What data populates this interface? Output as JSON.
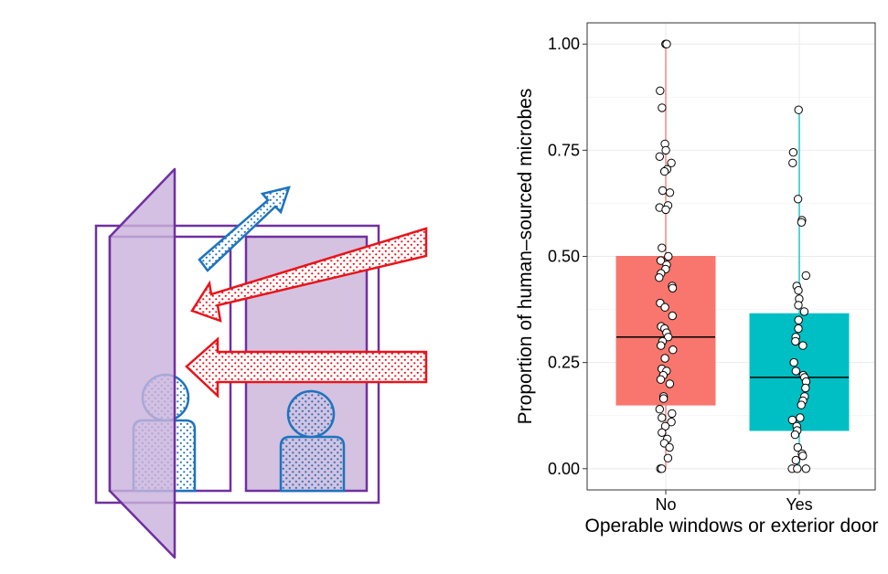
{
  "colors": {
    "no_group": "#F8766D",
    "yes_group": "#00BFC4",
    "frame_purple": "#7030A0",
    "fill_purple": "#D4C2E0",
    "arrow_red": "#E8141B",
    "arrow_blue": "#1E73BE",
    "grid": "#EBEBEB"
  },
  "illustration": {
    "icons": [
      "open-window-icon",
      "outdoor-air-arrow-icon",
      "exhaust-air-arrow-icon",
      "occupant-icon"
    ]
  },
  "chart_data": {
    "type": "boxplot",
    "xlabel": "Operable windows or exterior door",
    "ylabel": "Proportion of human–sourced microbes",
    "categories": [
      "No",
      "Yes"
    ],
    "ylim": [
      -0.05,
      1.05
    ],
    "yticks": [
      0.0,
      0.25,
      0.5,
      0.75,
      1.0
    ],
    "ytick_labels": [
      "0.00",
      "0.25",
      "0.50",
      "0.75",
      "1.00"
    ],
    "grid": true,
    "boxes": [
      {
        "category": "No",
        "min": 0.0,
        "q1": 0.15,
        "median": 0.31,
        "q3": 0.5,
        "max": 1.0
      },
      {
        "category": "Yes",
        "min": 0.0,
        "q1": 0.09,
        "median": 0.215,
        "q3": 0.365,
        "max": 0.845
      }
    ],
    "points": {
      "No": [
        1.0,
        1.0,
        0.89,
        0.85,
        0.765,
        0.75,
        0.735,
        0.72,
        0.705,
        0.7,
        0.655,
        0.65,
        0.62,
        0.615,
        0.61,
        0.52,
        0.5,
        0.49,
        0.48,
        0.47,
        0.46,
        0.45,
        0.43,
        0.425,
        0.39,
        0.38,
        0.36,
        0.335,
        0.33,
        0.32,
        0.31,
        0.3,
        0.29,
        0.28,
        0.26,
        0.235,
        0.23,
        0.22,
        0.21,
        0.2,
        0.17,
        0.165,
        0.14,
        0.13,
        0.12,
        0.11,
        0.1,
        0.085,
        0.07,
        0.06,
        0.05,
        0.025,
        0.0,
        0.0
      ],
      "Yes": [
        0.845,
        0.745,
        0.72,
        0.635,
        0.585,
        0.58,
        0.455,
        0.43,
        0.42,
        0.4,
        0.385,
        0.37,
        0.35,
        0.33,
        0.31,
        0.3,
        0.29,
        0.25,
        0.23,
        0.22,
        0.215,
        0.205,
        0.19,
        0.17,
        0.16,
        0.15,
        0.12,
        0.115,
        0.1,
        0.09,
        0.08,
        0.05,
        0.035,
        0.03,
        0.02,
        0.0,
        0.0,
        0.0
      ]
    }
  }
}
